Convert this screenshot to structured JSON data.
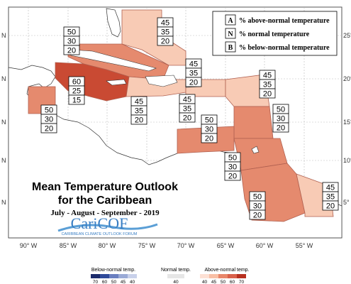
{
  "map": {
    "title_line1": "Mean Temperature Outlook",
    "title_line2": "for the Caribbean",
    "period": "July - August - September - 2019",
    "logo_text": "CariCOF",
    "logo_subtext": "CARIBBEAN CLIMATE OUTLOOK FORUM",
    "lon_labels": [
      "90° W",
      "85° W",
      "80° W",
      "75° W",
      "70° W",
      "65° W",
      "60° W",
      "55° W"
    ],
    "lat_labels_right": [
      "25° N",
      "20° N",
      "15° N",
      "10° N",
      "5° N"
    ],
    "lat_labels_left": [
      "N",
      "N",
      "N",
      "N",
      "N"
    ]
  },
  "legend_key": [
    {
      "code": "A",
      "text": "% above-normal temperature"
    },
    {
      "code": "N",
      "text": "% normal temperature"
    },
    {
      "code": "B",
      "text": "% below-normal temperature"
    }
  ],
  "color_legend": {
    "below_label": "Below-normal temp.",
    "normal_label": "Normal temp.",
    "above_label": "Above-normal temp.",
    "below_ticks": [
      "70",
      "60",
      "50",
      "45",
      "40"
    ],
    "normal_ticks": [
      "40"
    ],
    "above_ticks": [
      "40",
      "45",
      "50",
      "60",
      "70"
    ],
    "below_colors": [
      "#1b2a6b",
      "#2f4a9a",
      "#6a7fc0",
      "#9aaad6",
      "#c9d1ea"
    ],
    "normal_color": "#e6e6e6",
    "above_colors": [
      "#fde0d4",
      "#f8bfa5",
      "#e8866a",
      "#d9604a",
      "#b7301f"
    ]
  },
  "regions": [
    {
      "id": "bahamas",
      "A": "45",
      "N": "35",
      "B": "20",
      "color": "#f8cbb5"
    },
    {
      "id": "cuba",
      "A": "50",
      "N": "30",
      "B": "20",
      "color": "#e58a6e"
    },
    {
      "id": "cayman-jamaica",
      "A": "60",
      "N": "25",
      "B": "15",
      "color": "#c94a33"
    },
    {
      "id": "belize",
      "A": "50",
      "N": "30",
      "B": "20",
      "color": "#e58a6e"
    },
    {
      "id": "hispaniola",
      "A": "45",
      "N": "35",
      "B": "20",
      "color": "#f8cbb5"
    },
    {
      "id": "jamaica-south",
      "A": "45",
      "N": "35",
      "B": "20",
      "color": "#f8cbb5"
    },
    {
      "id": "puerto-rico",
      "A": "45",
      "N": "35",
      "B": "20",
      "color": "#f8cbb5"
    },
    {
      "id": "leeward",
      "A": "45",
      "N": "35",
      "B": "20",
      "color": "#f8cbb5"
    },
    {
      "id": "windward",
      "A": "50",
      "N": "30",
      "B": "20",
      "color": "#e58a6e"
    },
    {
      "id": "abc-islands",
      "A": "50",
      "N": "30",
      "B": "20",
      "color": "#e58a6e"
    },
    {
      "id": "trinidad",
      "A": "50",
      "N": "30",
      "B": "20",
      "color": "#e58a6e"
    },
    {
      "id": "guyana",
      "A": "50",
      "N": "30",
      "B": "20",
      "color": "#e58a6e"
    },
    {
      "id": "french-guiana",
      "A": "45",
      "N": "35",
      "B": "20",
      "color": "#f8cbb5"
    }
  ]
}
